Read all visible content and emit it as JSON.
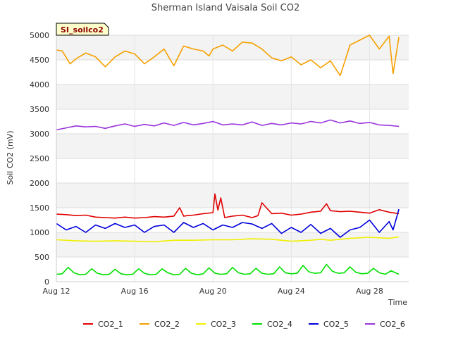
{
  "chart_data": {
    "type": "line",
    "title": "Sherman Island Vaisala Soil CO2",
    "badge": "SI_soilco2",
    "xlabel": "Time",
    "ylabel": "Soil CO2 (mV)",
    "xlim": [
      0,
      18
    ],
    "ylim": [
      0,
      5000
    ],
    "x_ticks": [
      {
        "x": 0,
        "label": "Aug 12"
      },
      {
        "x": 4,
        "label": "Aug 16"
      },
      {
        "x": 8,
        "label": "Aug 20"
      },
      {
        "x": 12,
        "label": "Aug 24"
      },
      {
        "x": 16,
        "label": "Aug 28"
      }
    ],
    "y_ticks": [
      0,
      500,
      1000,
      1500,
      2000,
      2500,
      3000,
      3500,
      4000,
      4500,
      5000
    ],
    "grid": true,
    "legend_position": "bottom",
    "series": [
      {
        "name": "CO2_1",
        "color": "#e00000",
        "x": [
          0,
          0.5,
          1,
          1.5,
          2,
          2.5,
          3,
          3.5,
          4,
          4.5,
          5,
          5.5,
          6,
          6.3,
          6.5,
          6.7,
          7,
          7.5,
          8,
          8.1,
          8.25,
          8.4,
          8.6,
          9,
          9.5,
          10,
          10.3,
          10.5,
          11,
          11.5,
          12,
          12.5,
          13,
          13.5,
          13.8,
          14,
          14.5,
          15,
          15.5,
          16,
          16.5,
          17,
          17.5
        ],
        "y": [
          1370,
          1360,
          1340,
          1350,
          1310,
          1300,
          1290,
          1310,
          1290,
          1300,
          1320,
          1310,
          1330,
          1500,
          1330,
          1340,
          1350,
          1380,
          1400,
          1780,
          1450,
          1700,
          1300,
          1330,
          1350,
          1300,
          1340,
          1600,
          1380,
          1390,
          1350,
          1370,
          1410,
          1430,
          1580,
          1440,
          1420,
          1430,
          1410,
          1390,
          1460,
          1410,
          1380
        ]
      },
      {
        "name": "CO2_2",
        "color": "#f5a000",
        "x": [
          0,
          0.3,
          0.7,
          1,
          1.5,
          2,
          2.5,
          3,
          3.5,
          4,
          4.5,
          5,
          5.5,
          6,
          6.5,
          7,
          7.5,
          7.8,
          8,
          8.5,
          9,
          9.5,
          10,
          10.5,
          11,
          11.5,
          12,
          12.5,
          13,
          13.5,
          14,
          14.5,
          15,
          15.5,
          16,
          16.5,
          17,
          17.2,
          17.5
        ],
        "y": [
          4700,
          4680,
          4420,
          4520,
          4640,
          4560,
          4360,
          4560,
          4680,
          4620,
          4420,
          4560,
          4720,
          4380,
          4780,
          4720,
          4680,
          4580,
          4720,
          4800,
          4680,
          4860,
          4840,
          4720,
          4540,
          4480,
          4560,
          4400,
          4500,
          4340,
          4480,
          4180,
          4800,
          4900,
          5000,
          4720,
          4980,
          4220,
          4960
        ]
      },
      {
        "name": "CO2_3",
        "color": "#f0f000",
        "x": [
          0,
          1,
          2,
          3,
          4,
          5,
          6,
          7,
          8,
          9,
          10,
          11,
          12,
          13,
          13.5,
          14,
          15,
          16,
          17,
          17.5
        ],
        "y": [
          850,
          830,
          820,
          830,
          820,
          810,
          840,
          840,
          850,
          850,
          870,
          860,
          820,
          840,
          860,
          840,
          880,
          900,
          880,
          910
        ]
      },
      {
        "name": "CO2_4",
        "color": "#00e000",
        "x": [
          0,
          0.3,
          0.6,
          0.9,
          1.2,
          1.5,
          1.8,
          2.1,
          2.4,
          2.7,
          3.0,
          3.3,
          3.6,
          3.9,
          4.2,
          4.5,
          4.8,
          5.1,
          5.4,
          5.7,
          6.0,
          6.3,
          6.6,
          6.9,
          7.2,
          7.5,
          7.8,
          8.1,
          8.4,
          8.7,
          9.0,
          9.3,
          9.6,
          9.9,
          10.2,
          10.5,
          10.8,
          11.1,
          11.4,
          11.7,
          12.0,
          12.3,
          12.6,
          12.9,
          13.2,
          13.5,
          13.8,
          14.1,
          14.4,
          14.7,
          15.0,
          15.3,
          15.6,
          15.9,
          16.2,
          16.5,
          16.8,
          17.1,
          17.5
        ],
        "y": [
          150,
          160,
          290,
          180,
          140,
          150,
          260,
          170,
          140,
          150,
          250,
          160,
          140,
          150,
          260,
          170,
          140,
          150,
          260,
          180,
          140,
          150,
          270,
          170,
          140,
          160,
          280,
          170,
          150,
          160,
          290,
          180,
          150,
          160,
          270,
          170,
          150,
          160,
          300,
          180,
          160,
          170,
          330,
          200,
          170,
          180,
          350,
          210,
          170,
          180,
          300,
          190,
          160,
          170,
          270,
          180,
          150,
          220,
          150
        ]
      },
      {
        "name": "CO2_5",
        "color": "#0000dd",
        "x": [
          0,
          0.5,
          1,
          1.5,
          2,
          2.5,
          3,
          3.5,
          4,
          4.5,
          5,
          5.5,
          6,
          6.5,
          7,
          7.5,
          8,
          8.5,
          9,
          9.5,
          10,
          10.5,
          11,
          11.5,
          12,
          12.5,
          13,
          13.5,
          14,
          14.5,
          15,
          15.5,
          16,
          16.5,
          17,
          17.2,
          17.5
        ],
        "y": [
          1180,
          1050,
          1120,
          1000,
          1150,
          1080,
          1180,
          1100,
          1150,
          1000,
          1120,
          1150,
          1000,
          1200,
          1100,
          1180,
          1050,
          1150,
          1100,
          1200,
          1170,
          1080,
          1180,
          980,
          1100,
          1000,
          1160,
          980,
          1080,
          900,
          1050,
          1100,
          1250,
          1000,
          1220,
          1050,
          1470
        ]
      },
      {
        "name": "CO2_6",
        "color": "#9933dd",
        "x": [
          0,
          0.5,
          1,
          1.5,
          2,
          2.5,
          3,
          3.5,
          4,
          4.5,
          5,
          5.5,
          6,
          6.5,
          7,
          7.5,
          8,
          8.5,
          9,
          9.5,
          10,
          10.5,
          11,
          11.5,
          12,
          12.5,
          13,
          13.5,
          14,
          14.5,
          15,
          15.5,
          16,
          16.5,
          17,
          17.5
        ],
        "y": [
          3080,
          3120,
          3160,
          3140,
          3150,
          3110,
          3160,
          3200,
          3150,
          3190,
          3160,
          3220,
          3170,
          3230,
          3180,
          3210,
          3250,
          3180,
          3200,
          3180,
          3240,
          3170,
          3210,
          3180,
          3220,
          3200,
          3250,
          3220,
          3280,
          3220,
          3260,
          3210,
          3230,
          3180,
          3170,
          3150
        ]
      }
    ]
  }
}
